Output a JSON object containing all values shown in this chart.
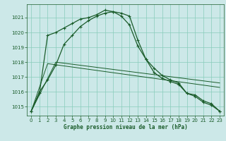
{
  "title": "Graphe pression niveau de la mer (hPa)",
  "bg_color": "#cce8e8",
  "grid_color": "#88ccbb",
  "line_color": "#1a5c2a",
  "ylim": [
    1014.4,
    1021.9
  ],
  "yticks": [
    1015,
    1016,
    1017,
    1018,
    1019,
    1020,
    1021
  ],
  "xlim": [
    -0.5,
    23.5
  ],
  "xticks": [
    0,
    1,
    2,
    3,
    4,
    5,
    6,
    7,
    8,
    9,
    10,
    11,
    12,
    13,
    14,
    15,
    16,
    17,
    18,
    19,
    20,
    21,
    22,
    23
  ],
  "series": [
    {
      "x": [
        0,
        1,
        2,
        3,
        4,
        5,
        6,
        7,
        8,
        9,
        10,
        11,
        12,
        13,
        14,
        15,
        16,
        17,
        18,
        19,
        20,
        21,
        22,
        23
      ],
      "y": [
        1014.7,
        1015.9,
        1019.8,
        1020.0,
        1020.3,
        1020.6,
        1020.9,
        1021.0,
        1021.2,
        1021.5,
        1021.4,
        1021.3,
        1021.1,
        1019.5,
        1018.2,
        1017.6,
        1017.1,
        1016.8,
        1016.6,
        1015.9,
        1015.8,
        1015.4,
        1015.2,
        1014.7
      ],
      "marker": true
    },
    {
      "x": [
        0,
        1,
        2,
        3,
        4,
        5,
        6,
        7,
        8,
        9,
        10,
        11,
        12,
        13,
        14,
        15,
        16,
        17,
        18,
        19,
        20,
        21,
        22,
        23
      ],
      "y": [
        1014.7,
        1016.0,
        1016.8,
        1017.8,
        1019.2,
        1019.8,
        1020.4,
        1020.8,
        1021.1,
        1021.3,
        1021.4,
        1021.1,
        1020.5,
        1019.1,
        1018.2,
        1017.3,
        1016.9,
        1016.7,
        1016.5,
        1015.9,
        1015.7,
        1015.3,
        1015.1,
        1014.7
      ],
      "marker": true
    },
    {
      "x": [
        0,
        2,
        23
      ],
      "y": [
        1014.7,
        1017.9,
        1016.3
      ],
      "marker": false
    },
    {
      "x": [
        0,
        3,
        23
      ],
      "y": [
        1014.7,
        1018.0,
        1016.6
      ],
      "marker": false
    }
  ]
}
